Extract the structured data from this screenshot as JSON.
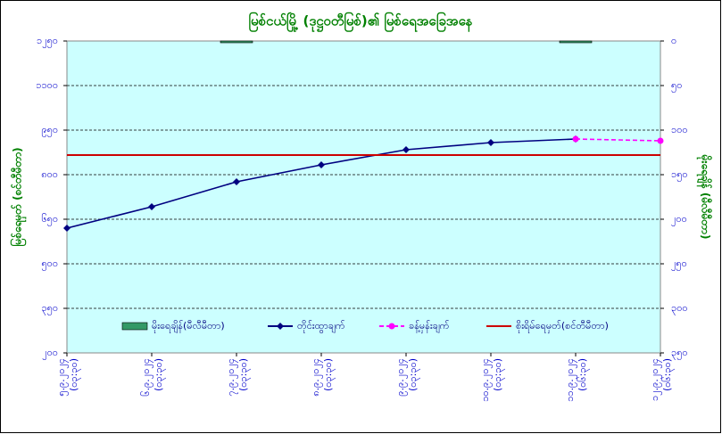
{
  "chart_data": {
    "type": "line",
    "title": "မြစ်ငယ်မြို့ (ဒုဋ္ဌဝတီမြစ်)၏ မြစ်ရေအခြေအနေ",
    "ylabel": "မြစ်ရေမှတ် (စင်တီမီတာ)",
    "y2label": "မိုးရေချိန် (မီလီမီတာ)",
    "categories": [
      "၅.၉.၂၀၂၄ (၀၃:၃၀)",
      "၆.၉.၂၀၂၄ (၀၃:၃၀)",
      "၇.၉.၂၀၂၄ (၀၃:၃၀)",
      "၈.၉.၂၀၂၄ (၀၃:၃၀)",
      "၉.၉.၂၀၂၄ (၀၃:၃၀)",
      "၁၀.၉.၂၀၂၄ (၀၃:၃၀)",
      "၁၁.၉.၂၀၂၄ (၀၆:၃၀)",
      "၁၂.၉.၂၀၂၄ (၀၆:၃၀)"
    ],
    "series": [
      {
        "name": "မိုးရေချိန်(မီလီမီတာ)",
        "kind": "bar",
        "axis": "y2",
        "color": "#339966",
        "values": [
          0,
          0,
          2,
          0,
          0,
          0,
          2,
          0
        ]
      },
      {
        "name": "တိုင်းထွာချက်",
        "kind": "line",
        "color": "#000080",
        "marker": "diamond",
        "values": [
          620,
          692,
          776,
          833,
          884,
          908,
          920,
          null
        ]
      },
      {
        "name": "ခန့်မှန်းချက်",
        "kind": "line",
        "color": "#ff00ff",
        "marker": "circle",
        "dashed": true,
        "values": [
          null,
          null,
          null,
          null,
          null,
          null,
          920,
          914
        ]
      },
      {
        "name": "စိုးရိမ်ရေမှတ်(စင်တီမီတာ)",
        "kind": "line",
        "color": "#cc0000",
        "values": [
          866,
          866,
          866,
          866,
          866,
          866,
          866,
          866
        ]
      }
    ],
    "ylim": [
      200,
      1250
    ],
    "yticks": [
      {
        "value": 200,
        "label": "၂၀၀"
      },
      {
        "value": 350,
        "label": "၃၅၀"
      },
      {
        "value": 500,
        "label": "၅၀၀"
      },
      {
        "value": 650,
        "label": "၆၅၀"
      },
      {
        "value": 800,
        "label": "၈၀၀"
      },
      {
        "value": 950,
        "label": "၉၅၀"
      },
      {
        "value": 1100,
        "label": "၁၁၀၀"
      },
      {
        "value": 1250,
        "label": "၁၂၅၀"
      }
    ],
    "y2lim": [
      350,
      0
    ],
    "y2ticks": [
      {
        "value": 0,
        "label": "၀"
      },
      {
        "value": 50,
        "label": "၅၀"
      },
      {
        "value": 100,
        "label": "၁၀၀"
      },
      {
        "value": 150,
        "label": "၁၅၀"
      },
      {
        "value": 200,
        "label": "၂၀၀"
      },
      {
        "value": 250,
        "label": "၂၅၀"
      },
      {
        "value": 300,
        "label": "၃၀၀"
      },
      {
        "value": 350,
        "label": "၃၅၀"
      }
    ],
    "grid": true
  }
}
